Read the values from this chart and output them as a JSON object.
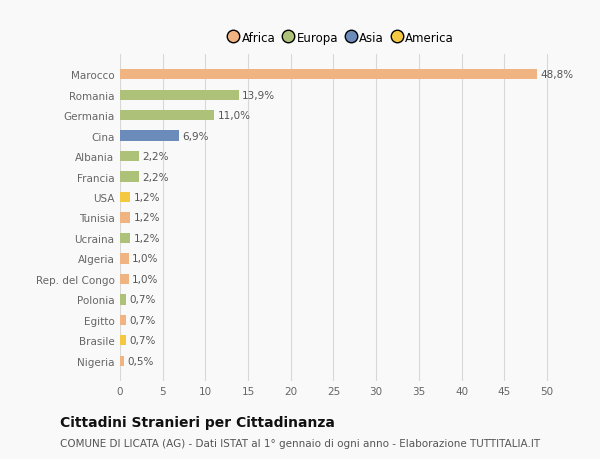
{
  "countries": [
    "Marocco",
    "Romania",
    "Germania",
    "Cina",
    "Albania",
    "Francia",
    "USA",
    "Tunisia",
    "Ucraina",
    "Algeria",
    "Rep. del Congo",
    "Polonia",
    "Egitto",
    "Brasile",
    "Nigeria"
  ],
  "values": [
    48.8,
    13.9,
    11.0,
    6.9,
    2.2,
    2.2,
    1.2,
    1.2,
    1.2,
    1.0,
    1.0,
    0.7,
    0.7,
    0.7,
    0.5
  ],
  "labels": [
    "48,8%",
    "13,9%",
    "11,0%",
    "6,9%",
    "2,2%",
    "2,2%",
    "1,2%",
    "1,2%",
    "1,2%",
    "1,0%",
    "1,0%",
    "0,7%",
    "0,7%",
    "0,7%",
    "0,5%"
  ],
  "colors": [
    "#f0b482",
    "#adc178",
    "#adc178",
    "#6b8cba",
    "#adc178",
    "#adc178",
    "#f5c842",
    "#f0b482",
    "#adc178",
    "#f0b482",
    "#f0b482",
    "#adc178",
    "#f0b482",
    "#f5c842",
    "#f0b482"
  ],
  "legend_labels": [
    "Africa",
    "Europa",
    "Asia",
    "America"
  ],
  "legend_colors": [
    "#f0b482",
    "#adc178",
    "#6b8cba",
    "#f5c842"
  ],
  "title": "Cittadini Stranieri per Cittadinanza",
  "subtitle": "COMUNE DI LICATA (AG) - Dati ISTAT al 1° gennaio di ogni anno - Elaborazione TUTTITALIA.IT",
  "xlim": [
    0,
    52
  ],
  "xticks": [
    0,
    5,
    10,
    15,
    20,
    25,
    30,
    35,
    40,
    45,
    50
  ],
  "background_color": "#f9f9f9",
  "grid_color": "#d8d8d8",
  "bar_height": 0.5,
  "title_fontsize": 10,
  "subtitle_fontsize": 7.5,
  "tick_fontsize": 7.5,
  "label_fontsize": 7.5,
  "legend_fontsize": 8.5
}
